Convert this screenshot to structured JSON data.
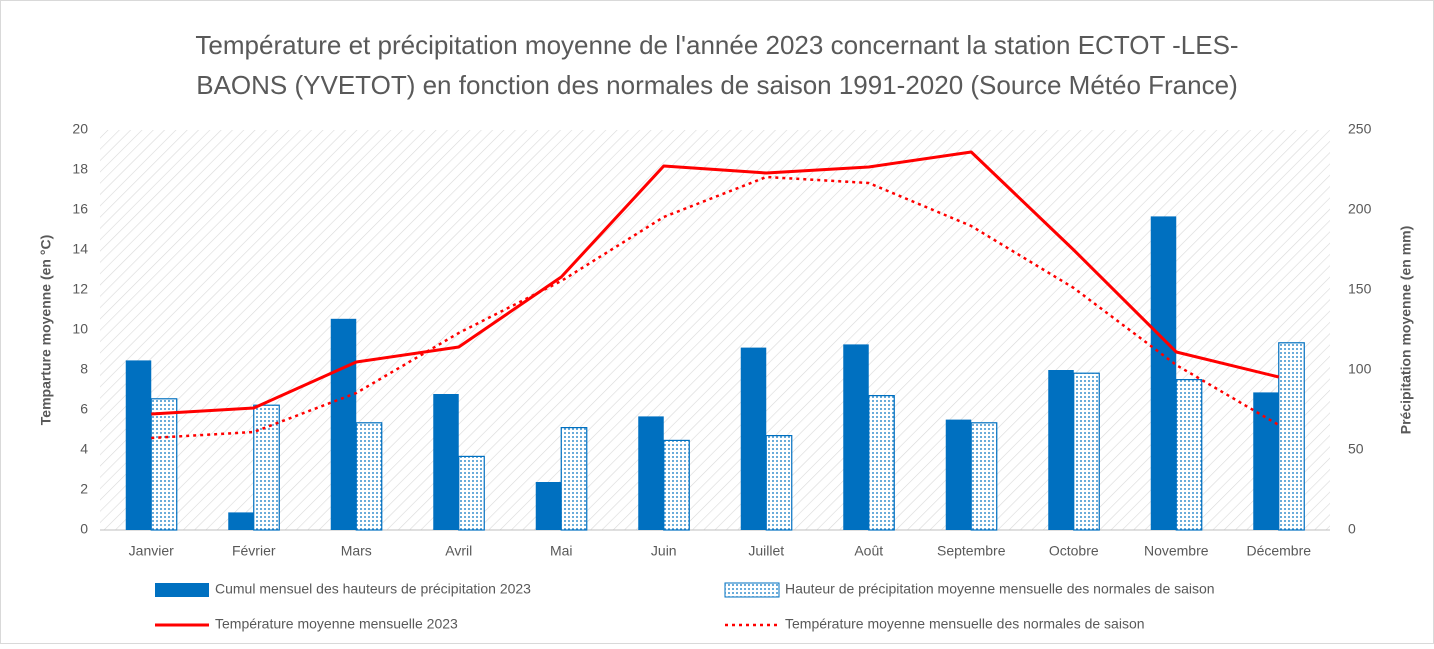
{
  "chart_data": {
    "type": "bar",
    "title": [
      "Température et précipitation moyenne de l'année 2023 concernant la station ECTOT -LES-",
      "BAONS (YVETOT) en fonction des normales de saison 1991-2020 (Source Météo France)"
    ],
    "y_label": "Temparture moyenne (en °C)",
    "y2_label": "Précipitation moyenne (en mm)",
    "categories": [
      "Janvier",
      "Février",
      "Mars",
      "Avril",
      "Mai",
      "Juin",
      "Juillet",
      "Août",
      "Septembre",
      "Octobre",
      "Novembre",
      "Décembre"
    ],
    "ylim": [
      0,
      20
    ],
    "yticks": [
      0,
      2,
      4,
      6,
      8,
      10,
      12,
      14,
      16,
      18,
      20
    ],
    "y2lim": [
      0,
      250
    ],
    "y2ticks": [
      0,
      50,
      100,
      150,
      200,
      250
    ],
    "grid": false,
    "legend": "bottom",
    "series": [
      {
        "name": "Cumul mensuel des hauteurs de précipitation 2023",
        "type": "bar",
        "axis": "y2",
        "color": "#0070c0",
        "fill": "solid",
        "values": [
          106,
          11,
          132,
          85,
          30,
          71,
          114,
          116,
          69,
          100,
          196,
          86
        ]
      },
      {
        "name": "Hauteur de précipitation moyenne mensuelle des normales de saison",
        "type": "bar",
        "axis": "y2",
        "color": "#0070c0",
        "fill": "dotted",
        "values": [
          82,
          78,
          67,
          46,
          64,
          56,
          59,
          84,
          67,
          98,
          94,
          117
        ]
      },
      {
        "name": "Température moyenne mensuelle 2023",
        "type": "line",
        "axis": "y",
        "color": "#ff0000",
        "dash": "solid",
        "values": [
          5.8,
          6.1,
          8.4,
          9.15,
          12.65,
          18.2,
          17.85,
          18.15,
          18.9,
          14,
          8.9,
          7.65
        ]
      },
      {
        "name": "Température moyenne mensuelle des normales de saison",
        "type": "line",
        "axis": "y",
        "color": "#ff0000",
        "dash": "dotted",
        "values": [
          4.6,
          4.9,
          6.85,
          9.85,
          12.45,
          15.65,
          17.65,
          17.35,
          15.2,
          12.1,
          8.25,
          5.25
        ]
      }
    ]
  }
}
